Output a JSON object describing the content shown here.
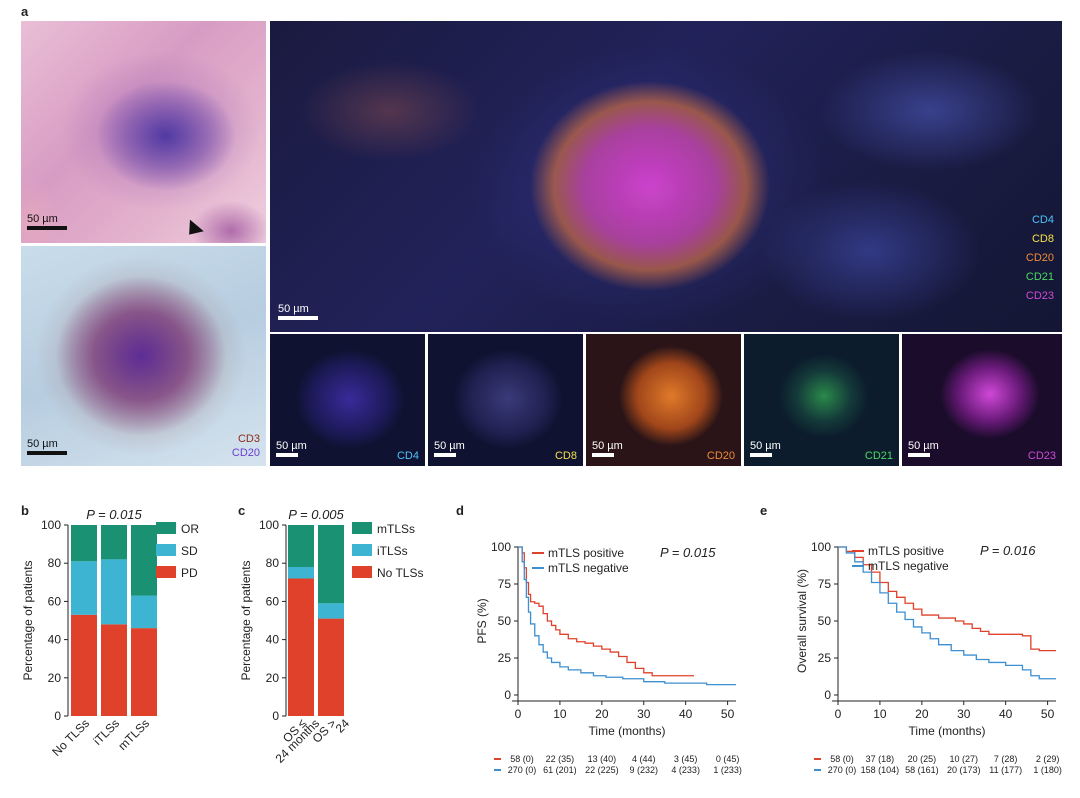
{
  "panel_a": {
    "letter": "a",
    "he": {
      "scale": "50 µm"
    },
    "ihc": {
      "scale": "50 µm",
      "labels": [
        "CD3",
        "CD20"
      ],
      "label_colors": [
        "#8b2b1a",
        "#6a3fd0"
      ]
    },
    "mif_main": {
      "scale": "50 µm",
      "markers": [
        "CD4",
        "CD8",
        "CD20",
        "CD21",
        "CD23"
      ],
      "marker_colors": [
        "#4fc3f7",
        "#f5e14a",
        "#f08c3a",
        "#4cd964",
        "#d04ad8"
      ]
    },
    "thumbnails": [
      {
        "scale": "50 µm",
        "label": "CD4",
        "color": "#4fc3f7"
      },
      {
        "scale": "50 µm",
        "label": "CD8",
        "color": "#f5e14a"
      },
      {
        "scale": "50 µm",
        "label": "CD20",
        "color": "#f08c3a"
      },
      {
        "scale": "50 µm",
        "label": "CD21",
        "color": "#4cd964"
      },
      {
        "scale": "50 µm",
        "label": "CD23",
        "color": "#d04ad8"
      }
    ]
  },
  "panel_b": {
    "letter": "b",
    "p_text": "P = 0.015"
  },
  "panel_c": {
    "letter": "c",
    "p_text": "P = 0.005"
  },
  "panel_d": {
    "letter": "d",
    "p_text": "P = 0.015"
  },
  "panel_e": {
    "letter": "e",
    "p_text": "P = 0.016"
  },
  "chart_data": [
    {
      "type": "bar",
      "stacked": true,
      "categories": [
        "No TLSs",
        "iTLSs",
        "mTLSs"
      ],
      "ylabel": "Percentage of patients",
      "ylim": [
        0,
        100
      ],
      "yticks": [
        0,
        20,
        40,
        60,
        80,
        100
      ],
      "legend": "right",
      "series": [
        {
          "name": "PD",
          "color": "#e0412a",
          "values": [
            53,
            48,
            46
          ]
        },
        {
          "name": "SD",
          "color": "#3cb4d2",
          "values": [
            28,
            34,
            17
          ]
        },
        {
          "name": "OR",
          "color": "#1a9173",
          "values": [
            19,
            18,
            37
          ]
        }
      ]
    },
    {
      "type": "bar",
      "stacked": true,
      "categories": [
        "OS ≤ 24 months",
        "OS > 24"
      ],
      "ylabel": "Percentage of patients",
      "ylim": [
        0,
        100
      ],
      "yticks": [
        0,
        20,
        40,
        60,
        80,
        100
      ],
      "legend": "right",
      "series": [
        {
          "name": "No TLSs",
          "color": "#e0412a",
          "values": [
            72,
            51
          ]
        },
        {
          "name": "iTLSs",
          "color": "#3cb4d2",
          "values": [
            6,
            8
          ]
        },
        {
          "name": "mTLSs",
          "color": "#1a9173",
          "values": [
            22,
            41
          ]
        }
      ]
    },
    {
      "type": "line",
      "step": true,
      "xlabel": "Time (months)",
      "ylabel": "PFS (%)",
      "xlim": [
        0,
        52
      ],
      "ylim": [
        0,
        100
      ],
      "xticks": [
        0,
        10,
        20,
        30,
        40,
        50
      ],
      "yticks": [
        0,
        25,
        50,
        75,
        100
      ],
      "series": [
        {
          "name": "mTLS positive",
          "color": "#e0412a",
          "x": [
            0,
            1,
            1.5,
            2,
            2.5,
            3,
            4,
            5,
            6,
            7,
            8,
            9,
            10,
            12,
            14,
            16,
            18,
            20,
            22,
            24,
            26,
            28,
            30,
            32,
            34,
            38,
            42
          ],
          "y": [
            100,
            96,
            86,
            76,
            68,
            63,
            62,
            60,
            55,
            50,
            47,
            44,
            41,
            38,
            36,
            35,
            33,
            31,
            29,
            26,
            22,
            18,
            15,
            13,
            13,
            13,
            13
          ]
        },
        {
          "name": "mTLS negative",
          "color": "#3c8fd0",
          "x": [
            0,
            1,
            1.5,
            2,
            2.5,
            3,
            4,
            5,
            6,
            7,
            8,
            10,
            12,
            15,
            18,
            21,
            25,
            30,
            35,
            40,
            45,
            50,
            52
          ],
          "y": [
            100,
            90,
            78,
            66,
            56,
            48,
            40,
            34,
            29,
            25,
            22,
            19,
            17,
            15,
            13,
            12,
            11,
            9,
            8,
            8,
            7,
            7,
            7
          ]
        }
      ],
      "risk_table": [
        {
          "color": "#e0412a",
          "values": [
            "58 (0)",
            "22 (35)",
            "13 (40)",
            "4 (44)",
            "3 (45)",
            "0 (45)"
          ]
        },
        {
          "color": "#3c8fd0",
          "values": [
            "270 (0)",
            "61 (201)",
            "22 (225)",
            "9 (232)",
            "4 (233)",
            "1 (233)"
          ]
        }
      ]
    },
    {
      "type": "line",
      "step": true,
      "xlabel": "Time (months)",
      "ylabel": "Overall survival (%)",
      "xlim": [
        0,
        52
      ],
      "ylim": [
        0,
        100
      ],
      "xticks": [
        0,
        10,
        20,
        30,
        40,
        50
      ],
      "yticks": [
        0,
        25,
        50,
        75,
        100
      ],
      "series": [
        {
          "name": "mTLS positive",
          "color": "#e0412a",
          "x": [
            0,
            2,
            4,
            6,
            8,
            10,
            12,
            14,
            16,
            18,
            20,
            24,
            28,
            30,
            32,
            34,
            36,
            40,
            44,
            46,
            48,
            52
          ],
          "y": [
            100,
            97,
            93,
            88,
            83,
            76,
            70,
            66,
            62,
            58,
            54,
            52,
            50,
            48,
            45,
            43,
            41,
            41,
            40,
            31,
            30,
            30
          ]
        },
        {
          "name": "mTLS negative",
          "color": "#3c8fd0",
          "x": [
            0,
            2,
            4,
            6,
            8,
            10,
            12,
            14,
            16,
            18,
            20,
            22,
            24,
            27,
            30,
            33,
            36,
            40,
            44,
            46,
            48,
            52
          ],
          "y": [
            100,
            96,
            90,
            83,
            76,
            69,
            62,
            56,
            51,
            46,
            42,
            38,
            34,
            30,
            27,
            24,
            22,
            20,
            17,
            13,
            11,
            11
          ]
        }
      ],
      "risk_table": [
        {
          "color": "#e0412a",
          "values": [
            "58 (0)",
            "37 (18)",
            "20 (25)",
            "10 (27)",
            "7 (28)",
            "2 (29)"
          ]
        },
        {
          "color": "#3c8fd0",
          "values": [
            "270 (0)",
            "158 (104)",
            "58 (161)",
            "20 (173)",
            "11 (177)",
            "1 (180)"
          ]
        }
      ]
    }
  ]
}
